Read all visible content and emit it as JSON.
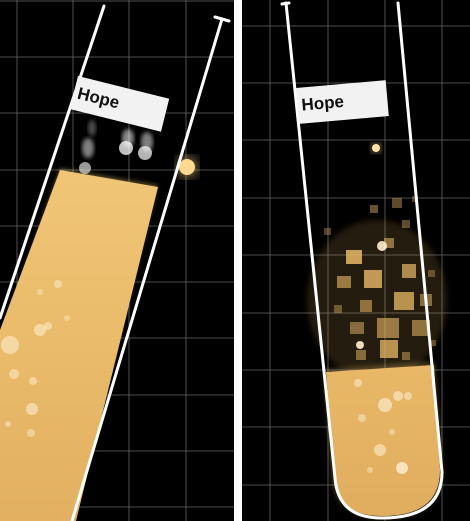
{
  "panels": [
    {
      "label": "Hope"
    },
    {
      "label": "Hope"
    }
  ],
  "colors": {
    "background": "#000000",
    "grid": "#8a8a8a",
    "liquid": "#e9b966",
    "glow": "#ffd27a",
    "tube": "#ffffff",
    "label_card": "#f2f2f2"
  }
}
